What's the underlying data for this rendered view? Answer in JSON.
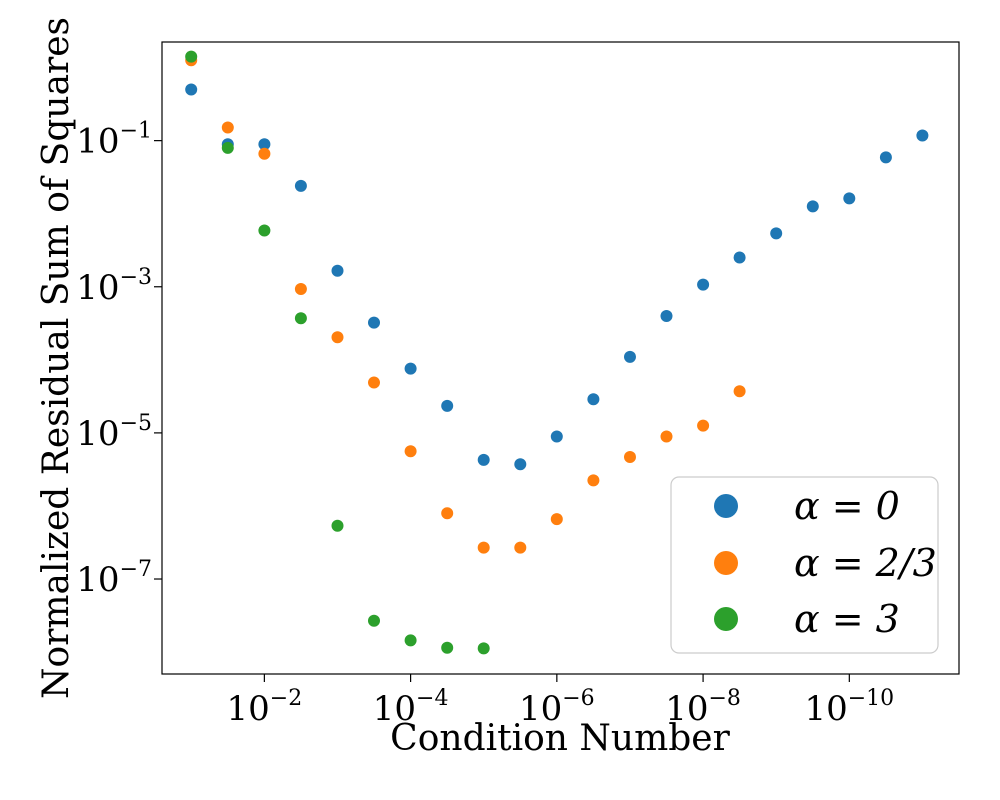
{
  "chart_data": {
    "type": "scatter",
    "title": "",
    "xlabel": "Condition Number",
    "ylabel": "Normalized Residual Sum of Squares",
    "x_scale": "log",
    "y_scale": "log",
    "x_axis_reversed": true,
    "xlim": [
      -0.6,
      -11.5
    ],
    "ylim": [
      -8.3,
      0.35
    ],
    "x_ticks": [
      {
        "base": "10",
        "exp": "−2",
        "value": -2
      },
      {
        "base": "10",
        "exp": "−4",
        "value": -4
      },
      {
        "base": "10",
        "exp": "−6",
        "value": -6
      },
      {
        "base": "10",
        "exp": "−8",
        "value": -8
      },
      {
        "base": "10",
        "exp": "−10",
        "value": -10
      }
    ],
    "y_ticks": [
      {
        "base": "10",
        "exp": "−1",
        "value": -1
      },
      {
        "base": "10",
        "exp": "−3",
        "value": -3
      },
      {
        "base": "10",
        "exp": "−5",
        "value": -5
      },
      {
        "base": "10",
        "exp": "−7",
        "value": -7
      }
    ],
    "legend_position": "bottom-right",
    "series": [
      {
        "name": "α = 0",
        "color": "#1f77b4",
        "x_log10": [
          -1,
          -1.5,
          -2,
          -2.5,
          -3,
          -3.5,
          -4,
          -4.5,
          -5,
          -5.5,
          -6,
          -6.5,
          -7,
          -7.5,
          -8,
          -8.5,
          -9,
          -9.5,
          -10,
          -10.5,
          -11
        ],
        "y_log10": [
          -0.3,
          -1.05,
          -1.05,
          -1.62,
          -2.78,
          -3.49,
          -4.12,
          -4.63,
          -5.37,
          -5.43,
          -5.05,
          -4.54,
          -3.96,
          -3.4,
          -2.97,
          -2.6,
          -2.27,
          -1.9,
          -1.79,
          -1.23,
          -0.93
        ]
      },
      {
        "name": "α = 2/3",
        "color": "#ff7f0e",
        "x_log10": [
          -1,
          -1.5,
          -2,
          -2.5,
          -3,
          -3.5,
          -4,
          -4.5,
          -5,
          -5.5,
          -6,
          -6.5,
          -7,
          -7.5,
          -8,
          -8.5
        ],
        "y_log10": [
          0.1,
          -0.82,
          -1.18,
          -3.03,
          -3.69,
          -4.31,
          -5.25,
          -6.1,
          -6.57,
          -6.57,
          -6.18,
          -5.65,
          -5.33,
          -5.05,
          -4.9,
          -4.43
        ]
      },
      {
        "name": "α = 3",
        "color": "#2ca02c",
        "x_log10": [
          -1,
          -1.5,
          -2,
          -2.5,
          -3,
          -3.5,
          -4,
          -4.5,
          -5
        ],
        "y_log10": [
          0.15,
          -1.1,
          -2.23,
          -3.43,
          -6.27,
          -7.57,
          -7.84,
          -7.94,
          -7.95
        ]
      }
    ]
  }
}
